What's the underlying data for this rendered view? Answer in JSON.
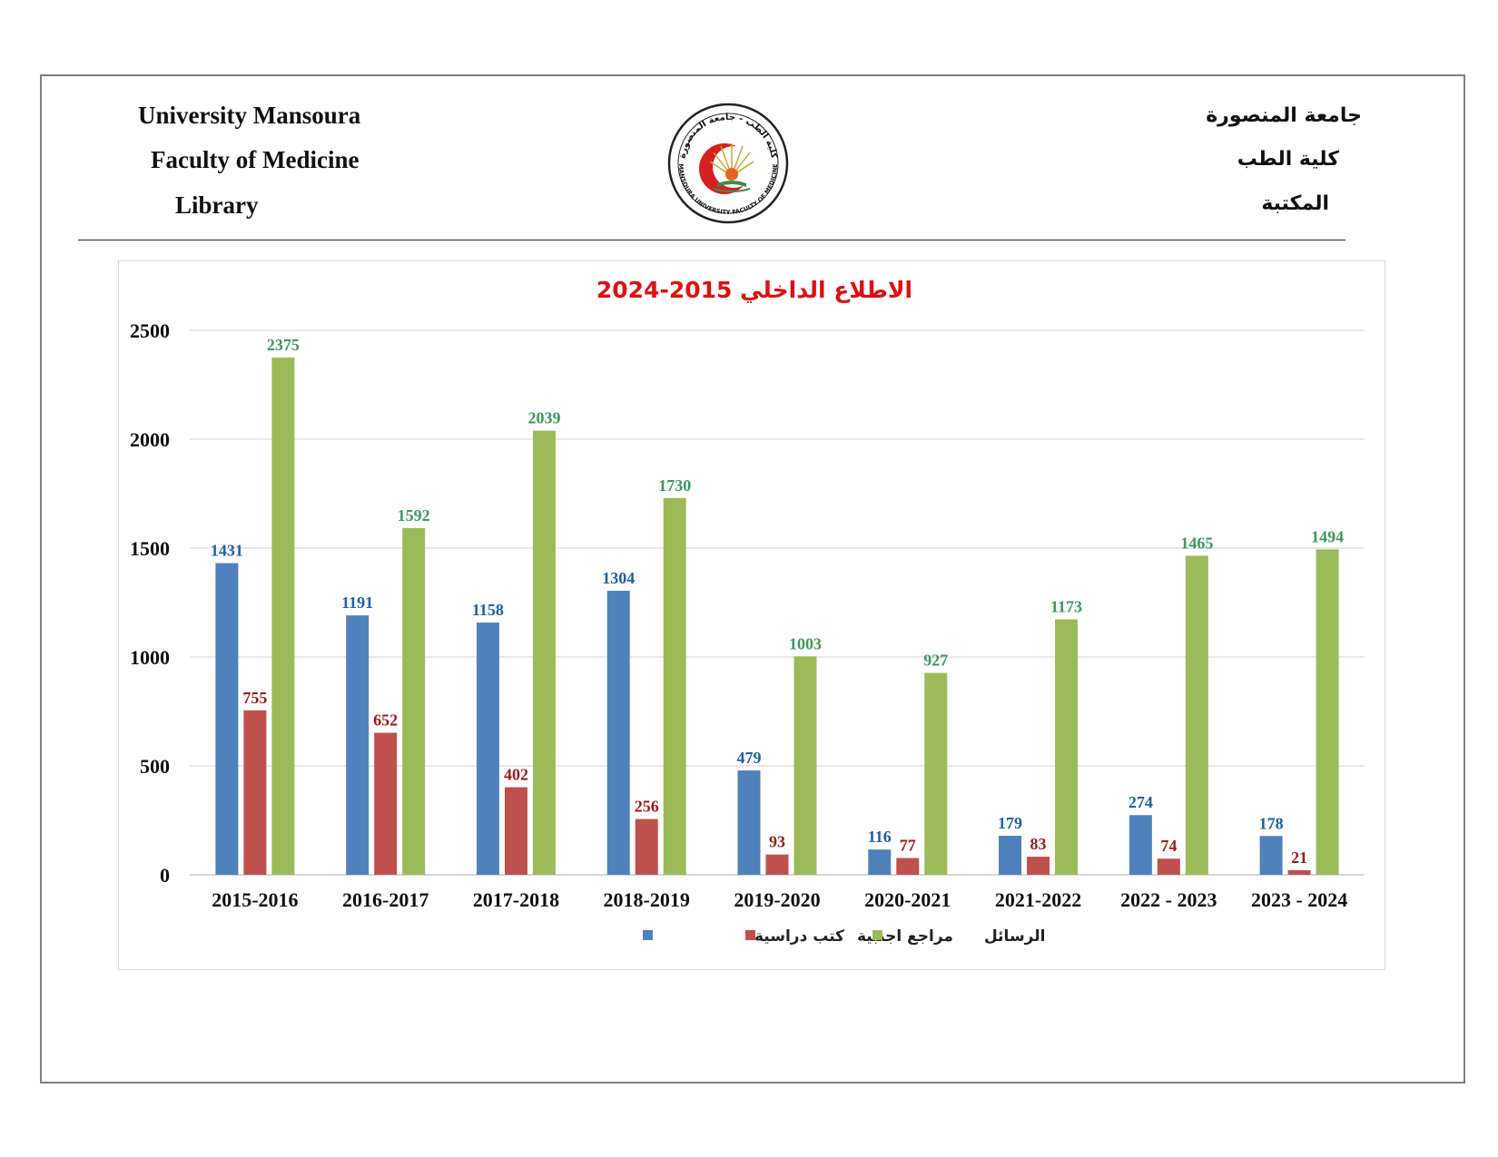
{
  "header": {
    "en_line1": "University Mansoura",
    "en_line2": "Faculty of Medicine",
    "en_line3": "Library",
    "ar_line1": "جامعة المنصورة",
    "ar_line2": "كلية الطب",
    "ar_line3": "المكتبة",
    "logo_text_top": "كلية الطب - جامعة المنصورة",
    "logo_text_bottom": "MANSOURA UNIVERSITY FACULTY OF MEDICINE"
  },
  "colors": {
    "blue": "#4f81bd",
    "red": "#c0504d",
    "green": "#9bbb59",
    "blue_label": "#1f5fa8",
    "red_label": "#a01a1a",
    "green_label": "#3a9a5a",
    "title": "#e01010"
  },
  "chart_data": {
    "type": "bar",
    "title": "الاطلاع الداخلي 2015-2024",
    "xlabel": "",
    "ylabel": "",
    "ylim": [
      0,
      2500
    ],
    "yticks": [
      0,
      500,
      1000,
      1500,
      2000,
      2500
    ],
    "grid": true,
    "legend_position": "bottom",
    "categories": [
      "2015-2016",
      "2016-2017",
      "2017-2018",
      "2018-2019",
      "2019-2020",
      "2020-2021",
      "2021-2022",
      "2022 - 2023",
      "2023 - 2024"
    ],
    "series": [
      {
        "name": "كتب دراسية",
        "color": "#4f81bd",
        "label_color": "#1f5fa8",
        "values": [
          1431,
          1191,
          1158,
          1304,
          479,
          116,
          179,
          274,
          178
        ]
      },
      {
        "name": "مراجع اجنبية",
        "color": "#c0504d",
        "label_color": "#a01a1a",
        "values": [
          755,
          652,
          402,
          256,
          93,
          77,
          83,
          74,
          21
        ]
      },
      {
        "name": "الرسائل",
        "color": "#9bbb59",
        "label_color": "#3a9a5a",
        "values": [
          2375,
          1592,
          2039,
          1730,
          1003,
          927,
          1173,
          1465,
          1494
        ]
      }
    ]
  }
}
